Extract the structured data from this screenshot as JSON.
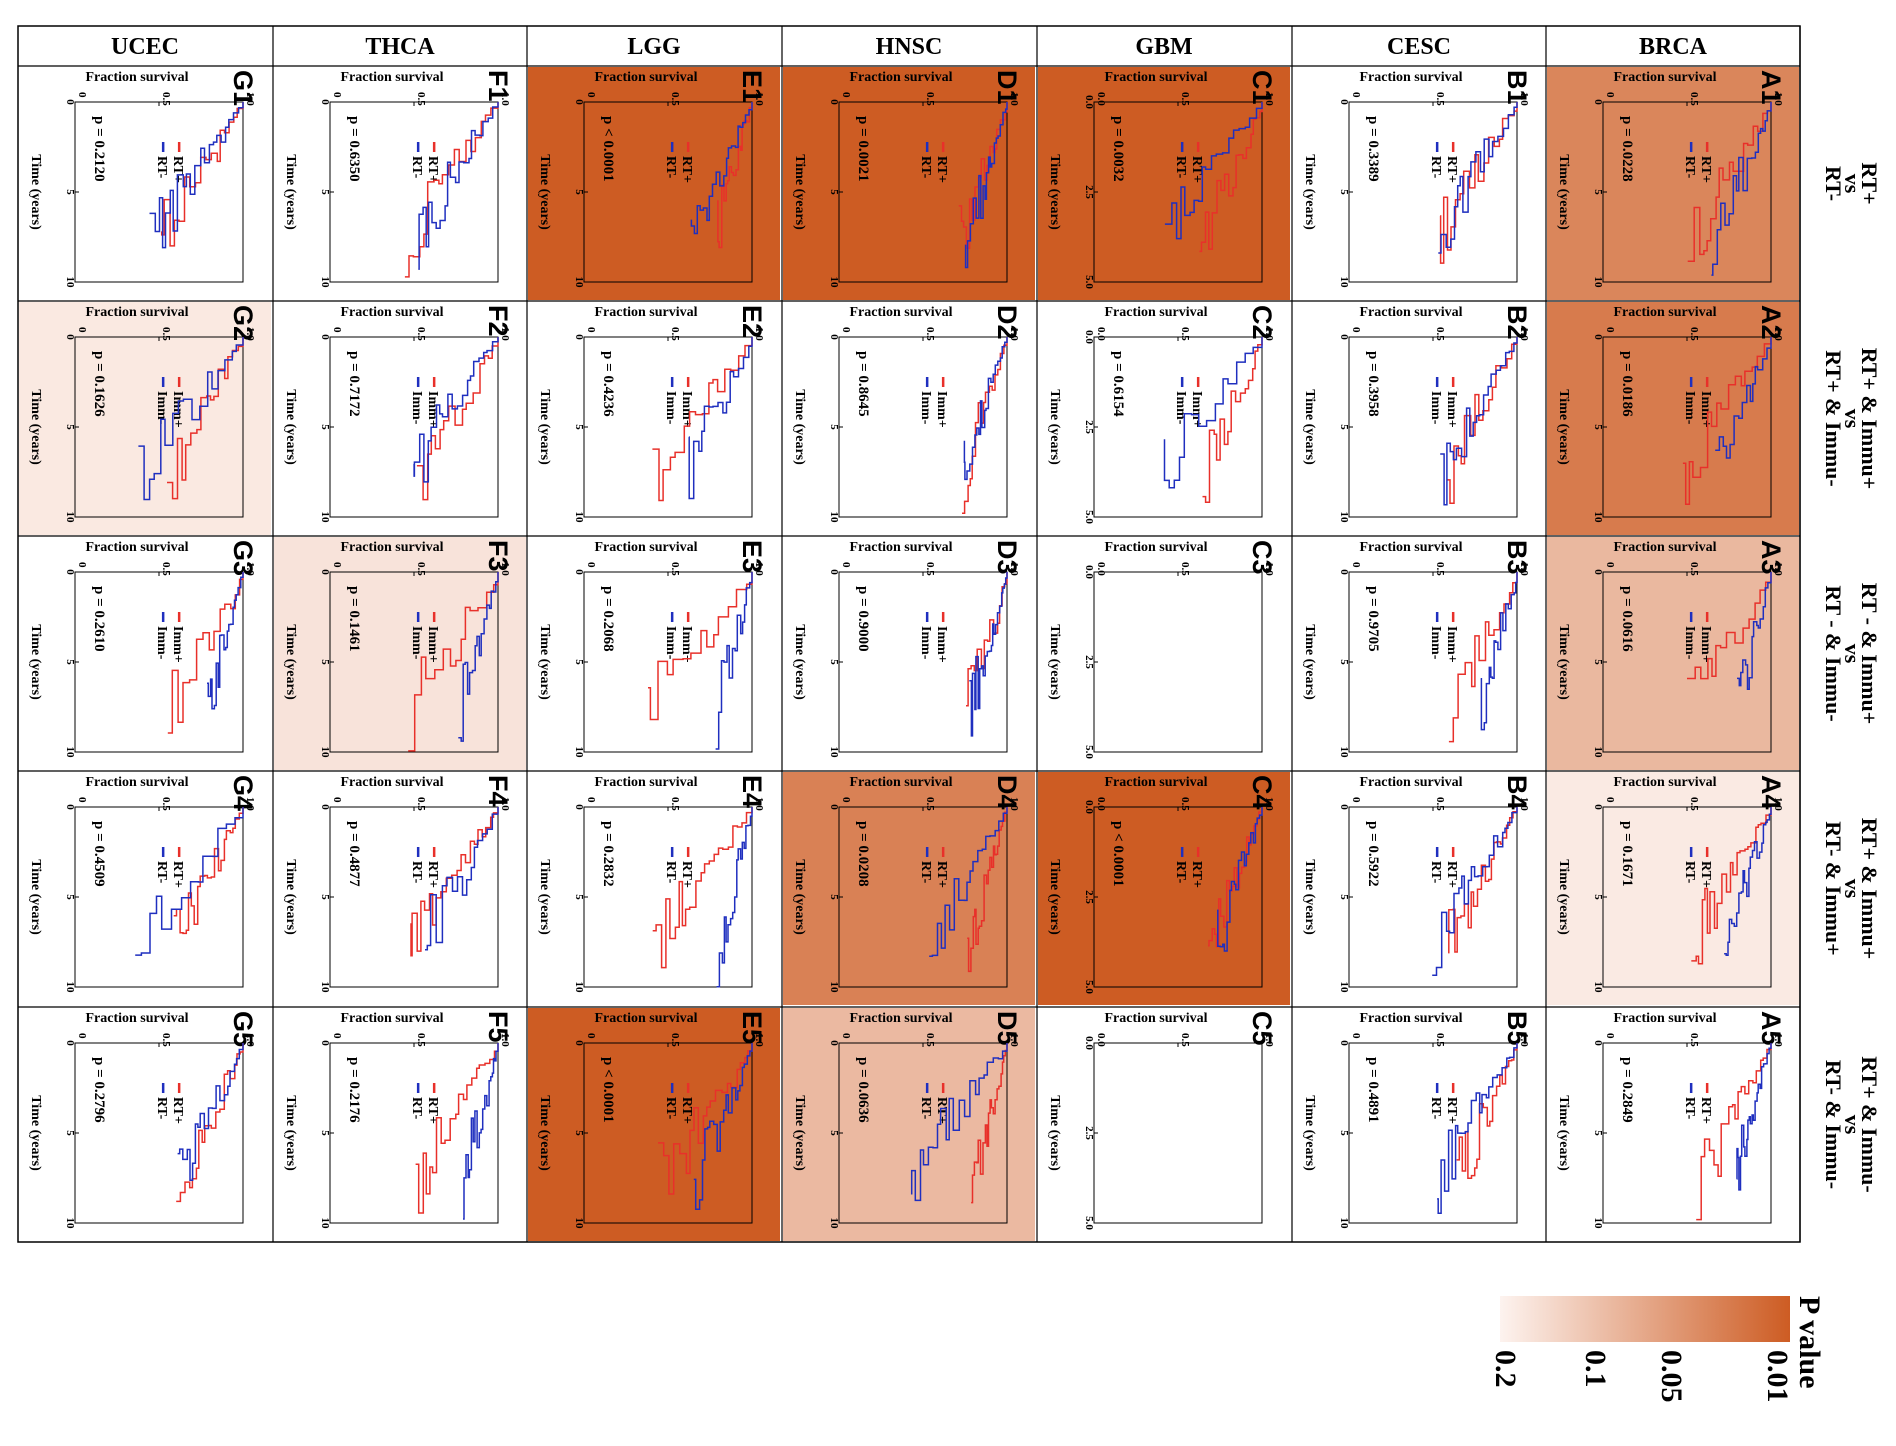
{
  "figure": {
    "columns": [
      "BRCA",
      "CESC",
      "GBM",
      "HNSC",
      "LGG",
      "THCA",
      "UCEC"
    ],
    "row_labels": [
      {
        "a": "RT+",
        "vs": "vs",
        "b": "RT-"
      },
      {
        "a": "RT+ & Immu+",
        "vs": "vs",
        "b": "RT+ & Immu-"
      },
      {
        "a": "RT - & Immu+",
        "vs": "vs",
        "b": "RT - & Immu-"
      },
      {
        "a": "RT+ & Immu+",
        "vs": "vs",
        "b": "RT- & Immu+"
      },
      {
        "a": "RT+ & Immu-",
        "vs": "vs",
        "b": "RT- & Immu-"
      }
    ],
    "axis_labels": {
      "y": "Fraction survival",
      "x": "Time (years)"
    },
    "colorbar": {
      "title": "P value",
      "ticks": [
        "0.01",
        "0.05",
        "0.1",
        "0.2"
      ],
      "colors": {
        "low_p": "#cd5c23",
        "high_p": "#fdf3ef"
      }
    },
    "series_colors": {
      "group1": "#e8302a",
      "group2": "#1f2fbf"
    }
  },
  "chart_data": [
    {
      "type": "line",
      "id": "A1",
      "col": "BRCA",
      "row": 1,
      "p_label": "p = 0.0228",
      "p": 0.0228,
      "legend": [
        "RT+",
        "RT-"
      ],
      "xlim": [
        0,
        10
      ],
      "xticks": [
        "0",
        "5",
        "10"
      ],
      "yticks": [
        "0",
        "0.5",
        "1.0"
      ],
      "empty": false
    },
    {
      "type": "line",
      "id": "A2",
      "col": "BRCA",
      "row": 2,
      "p_label": "p = 0.0186",
      "p": 0.0186,
      "legend": [
        "Imm+",
        "Imm-"
      ],
      "xlim": [
        0,
        10
      ],
      "xticks": [
        "0",
        "5",
        "10"
      ],
      "yticks": [
        "0",
        "0.5",
        "1.0"
      ],
      "empty": false
    },
    {
      "type": "line",
      "id": "A3",
      "col": "BRCA",
      "row": 3,
      "p_label": "p = 0.0616",
      "p": 0.0616,
      "legend": [
        "Imm+",
        "Imm-"
      ],
      "xlim": [
        0,
        10
      ],
      "xticks": [
        "0",
        "5",
        "10"
      ],
      "yticks": [
        "0",
        "0.5",
        "1.0"
      ],
      "empty": false
    },
    {
      "type": "line",
      "id": "A4",
      "col": "BRCA",
      "row": 4,
      "p_label": "p = 0.1671",
      "p": 0.1671,
      "legend": [
        "RT+",
        "RT-"
      ],
      "xlim": [
        0,
        10
      ],
      "xticks": [
        "0",
        "5",
        "10"
      ],
      "yticks": [
        "0",
        "0.5",
        "1.0"
      ],
      "empty": false
    },
    {
      "type": "line",
      "id": "A5",
      "col": "BRCA",
      "row": 5,
      "p_label": "p = 0.2849",
      "p": 0.2849,
      "legend": [
        "RT+",
        "RT-"
      ],
      "xlim": [
        0,
        10
      ],
      "xticks": [
        "0",
        "5",
        "10"
      ],
      "yticks": [
        "0",
        "0.5",
        "1.0"
      ],
      "empty": false
    },
    {
      "type": "line",
      "id": "B1",
      "col": "CESC",
      "row": 1,
      "p_label": "p = 0.3389",
      "p": 0.3389,
      "legend": [
        "RT+",
        "RT-"
      ],
      "xlim": [
        0,
        10
      ],
      "xticks": [
        "0",
        "5",
        "10"
      ],
      "yticks": [
        "0",
        "0.5",
        "1.0"
      ],
      "empty": false
    },
    {
      "type": "line",
      "id": "B2",
      "col": "CESC",
      "row": 2,
      "p_label": "p = 0.3958",
      "p": 0.3958,
      "legend": [
        "Imm+",
        "Imm-"
      ],
      "xlim": [
        0,
        10
      ],
      "xticks": [
        "0",
        "5",
        "10"
      ],
      "yticks": [
        "0",
        "0.5",
        "1.0"
      ],
      "empty": false
    },
    {
      "type": "line",
      "id": "B3",
      "col": "CESC",
      "row": 3,
      "p_label": "p = 0.9705",
      "p": 0.9705,
      "legend": [
        "Imm+",
        "Imm-"
      ],
      "xlim": [
        0,
        10
      ],
      "xticks": [
        "0",
        "5",
        "10"
      ],
      "yticks": [
        "0",
        "0.5",
        "1.0"
      ],
      "empty": false
    },
    {
      "type": "line",
      "id": "B4",
      "col": "CESC",
      "row": 4,
      "p_label": "p = 0.5922",
      "p": 0.5922,
      "legend": [
        "RT+",
        "RT-"
      ],
      "xlim": [
        0,
        10
      ],
      "xticks": [
        "0",
        "5",
        "10"
      ],
      "yticks": [
        "0",
        "0.5",
        "1.0"
      ],
      "empty": false
    },
    {
      "type": "line",
      "id": "B5",
      "col": "CESC",
      "row": 5,
      "p_label": "p = 0.4891",
      "p": 0.4891,
      "legend": [
        "RT+",
        "RT-"
      ],
      "xlim": [
        0,
        10
      ],
      "xticks": [
        "0",
        "5",
        "10"
      ],
      "yticks": [
        "0",
        "0.5",
        "1.0"
      ],
      "empty": false
    },
    {
      "type": "line",
      "id": "C1",
      "col": "GBM",
      "row": 1,
      "p_label": "p = 0.0032",
      "p": 0.0032,
      "legend": [
        "RT+",
        "RT-"
      ],
      "xlim": [
        0,
        5
      ],
      "xticks": [
        "0.0",
        "2.5",
        "5.0"
      ],
      "yticks": [
        "0.0",
        "0.5",
        "1.0"
      ],
      "empty": false
    },
    {
      "type": "line",
      "id": "C2",
      "col": "GBM",
      "row": 2,
      "p_label": "p = 0.6154",
      "p": 0.6154,
      "legend": [
        "Imm+",
        "Imm-"
      ],
      "xlim": [
        0,
        5
      ],
      "xticks": [
        "0.0",
        "2.5",
        "5.0"
      ],
      "yticks": [
        "0.0",
        "0.5",
        "1.0"
      ],
      "empty": false
    },
    {
      "type": "line",
      "id": "C3",
      "col": "GBM",
      "row": 3,
      "p_label": "",
      "p": null,
      "legend": [],
      "xlim": [
        0,
        5
      ],
      "xticks": [
        "0.0",
        "2.5",
        "5.0"
      ],
      "yticks": [
        "0.0",
        "0.5",
        "1.0"
      ],
      "empty": true
    },
    {
      "type": "line",
      "id": "C4",
      "col": "GBM",
      "row": 4,
      "p_label": "p < 0.0001",
      "p": 0.0001,
      "legend": [
        "RT+",
        "RT-"
      ],
      "xlim": [
        0,
        5
      ],
      "xticks": [
        "0.0",
        "2.5",
        "5.0"
      ],
      "yticks": [
        "0.0",
        "0.5",
        "1.0"
      ],
      "empty": false
    },
    {
      "type": "line",
      "id": "C5",
      "col": "GBM",
      "row": 5,
      "p_label": "",
      "p": null,
      "legend": [],
      "xlim": [
        0,
        5
      ],
      "xticks": [
        "0.0",
        "2.5",
        "5.0"
      ],
      "yticks": [
        "0.0",
        "0.5",
        "1.0"
      ],
      "empty": true
    },
    {
      "type": "line",
      "id": "D1",
      "col": "HNSC",
      "row": 1,
      "p_label": "p = 0.0021",
      "p": 0.0021,
      "legend": [
        "RT+",
        "RT-"
      ],
      "xlim": [
        0,
        10
      ],
      "xticks": [
        "0",
        "5",
        "10"
      ],
      "yticks": [
        "0",
        "0.5",
        "1.0"
      ],
      "empty": false
    },
    {
      "type": "line",
      "id": "D2",
      "col": "HNSC",
      "row": 2,
      "p_label": "p = 0.8645",
      "p": 0.8645,
      "legend": [
        "Imm+",
        "Imm-"
      ],
      "xlim": [
        0,
        10
      ],
      "xticks": [
        "0",
        "5",
        "10"
      ],
      "yticks": [
        "0",
        "0.5",
        "1.0"
      ],
      "empty": false
    },
    {
      "type": "line",
      "id": "D3",
      "col": "HNSC",
      "row": 3,
      "p_label": "p = 0.9000",
      "p": 0.9,
      "legend": [
        "Imm+",
        "Imm-"
      ],
      "xlim": [
        0,
        10
      ],
      "xticks": [
        "0",
        "5",
        "10"
      ],
      "yticks": [
        "0",
        "0.5",
        "1.0"
      ],
      "empty": false
    },
    {
      "type": "line",
      "id": "D4",
      "col": "HNSC",
      "row": 4,
      "p_label": "p = 0.0208",
      "p": 0.0208,
      "legend": [
        "RT+",
        "RT-"
      ],
      "xlim": [
        0,
        10
      ],
      "xticks": [
        "0",
        "5",
        "10"
      ],
      "yticks": [
        "0",
        "0.5",
        "1.0"
      ],
      "empty": false
    },
    {
      "type": "line",
      "id": "D5",
      "col": "HNSC",
      "row": 5,
      "p_label": "p = 0.0636",
      "p": 0.0636,
      "legend": [
        "RT+",
        "RT-"
      ],
      "xlim": [
        0,
        10
      ],
      "xticks": [
        "0",
        "5",
        "10"
      ],
      "yticks": [
        "0",
        "0.5",
        "1.0"
      ],
      "empty": false
    },
    {
      "type": "line",
      "id": "E1",
      "col": "LGG",
      "row": 1,
      "p_label": "p < 0.0001",
      "p": 0.0001,
      "legend": [
        "RT+",
        "RT-"
      ],
      "xlim": [
        0,
        10
      ],
      "xticks": [
        "0",
        "5",
        "10"
      ],
      "yticks": [
        "0",
        "0.5",
        "1.0"
      ],
      "empty": false
    },
    {
      "type": "line",
      "id": "E2",
      "col": "LGG",
      "row": 2,
      "p_label": "p = 0.4236",
      "p": 0.4236,
      "legend": [
        "Imm+",
        "Imm-"
      ],
      "xlim": [
        0,
        10
      ],
      "xticks": [
        "0",
        "5",
        "10"
      ],
      "yticks": [
        "0",
        "0.5",
        "1.0"
      ],
      "empty": false
    },
    {
      "type": "line",
      "id": "E3",
      "col": "LGG",
      "row": 3,
      "p_label": "p = 0.2068",
      "p": 0.2068,
      "legend": [
        "Imm+",
        "Imm-"
      ],
      "xlim": [
        0,
        10
      ],
      "xticks": [
        "0",
        "5",
        "10"
      ],
      "yticks": [
        "0",
        "0.5",
        "1.0"
      ],
      "empty": false
    },
    {
      "type": "line",
      "id": "E4",
      "col": "LGG",
      "row": 4,
      "p_label": "p = 0.2832",
      "p": 0.2832,
      "legend": [
        "RT+",
        "RT-"
      ],
      "xlim": [
        0,
        10
      ],
      "xticks": [
        "0",
        "5",
        "10"
      ],
      "yticks": [
        "0",
        "0.5",
        "1.0"
      ],
      "empty": false
    },
    {
      "type": "line",
      "id": "E5",
      "col": "LGG",
      "row": 5,
      "p_label": "p < 0.0001",
      "p": 0.0001,
      "legend": [
        "RT+",
        "RT-"
      ],
      "xlim": [
        0,
        10
      ],
      "xticks": [
        "0",
        "5",
        "10"
      ],
      "yticks": [
        "0",
        "0.5",
        "1.0"
      ],
      "empty": false
    },
    {
      "type": "line",
      "id": "F1",
      "col": "THCA",
      "row": 1,
      "p_label": "p = 0.6350",
      "p": 0.635,
      "legend": [
        "RT+",
        "RT-"
      ],
      "xlim": [
        0,
        10
      ],
      "xticks": [
        "0",
        "5",
        "10"
      ],
      "yticks": [
        "0",
        "0.5",
        "1.0"
      ],
      "empty": false
    },
    {
      "type": "line",
      "id": "F2",
      "col": "THCA",
      "row": 2,
      "p_label": "p = 0.7172",
      "p": 0.7172,
      "legend": [
        "Imm+",
        "Imm-"
      ],
      "xlim": [
        0,
        10
      ],
      "xticks": [
        "0",
        "5",
        "10"
      ],
      "yticks": [
        "0",
        "0.5",
        "1.0"
      ],
      "empty": false
    },
    {
      "type": "line",
      "id": "F3",
      "col": "THCA",
      "row": 3,
      "p_label": "p = 0.1461",
      "p": 0.1461,
      "legend": [
        "Imm+",
        "Imm-"
      ],
      "xlim": [
        0,
        10
      ],
      "xticks": [
        "0",
        "5",
        "10"
      ],
      "yticks": [
        "0",
        "0.5",
        "1.0"
      ],
      "empty": false
    },
    {
      "type": "line",
      "id": "F4",
      "col": "THCA",
      "row": 4,
      "p_label": "p = 0.4877",
      "p": 0.4877,
      "legend": [
        "RT+",
        "RT-"
      ],
      "xlim": [
        0,
        10
      ],
      "xticks": [
        "0",
        "5",
        "10"
      ],
      "yticks": [
        "0",
        "0.5",
        "1.0"
      ],
      "empty": false
    },
    {
      "type": "line",
      "id": "F5",
      "col": "THCA",
      "row": 5,
      "p_label": "p = 0.2176",
      "p": 0.2176,
      "legend": [
        "RT+",
        "RT-"
      ],
      "xlim": [
        0,
        10
      ],
      "xticks": [
        "0",
        "5",
        "10"
      ],
      "yticks": [
        "0",
        "0.5",
        "1.0"
      ],
      "empty": false
    },
    {
      "type": "line",
      "id": "G1",
      "col": "UCEC",
      "row": 1,
      "p_label": "p = 0.2120",
      "p": 0.212,
      "legend": [
        "RT+",
        "RT-"
      ],
      "xlim": [
        0,
        10
      ],
      "xticks": [
        "0",
        "5",
        "10"
      ],
      "yticks": [
        "0",
        "0.5",
        "1.0"
      ],
      "empty": false
    },
    {
      "type": "line",
      "id": "G2",
      "col": "UCEC",
      "row": 2,
      "p_label": "p = 0.1626",
      "p": 0.1626,
      "legend": [
        "Imm+",
        "Imm-"
      ],
      "xlim": [
        0,
        10
      ],
      "xticks": [
        "0",
        "5",
        "10"
      ],
      "yticks": [
        "0",
        "0.5",
        "1.0"
      ],
      "empty": false
    },
    {
      "type": "line",
      "id": "G3",
      "col": "UCEC",
      "row": 3,
      "p_label": "p = 0.2610",
      "p": 0.261,
      "legend": [
        "Imm+",
        "Imm-"
      ],
      "xlim": [
        0,
        10
      ],
      "xticks": [
        "0",
        "5",
        "10"
      ],
      "yticks": [
        "0",
        "0.5",
        "1.0"
      ],
      "empty": false
    },
    {
      "type": "line",
      "id": "G4",
      "col": "UCEC",
      "row": 4,
      "p_label": "p = 0.4509",
      "p": 0.4509,
      "legend": [
        "RT+",
        "RT-"
      ],
      "xlim": [
        0,
        10
      ],
      "xticks": [
        "0",
        "5",
        "10"
      ],
      "yticks": [
        "0",
        "0.5",
        "1.0"
      ],
      "empty": false
    },
    {
      "type": "line",
      "id": "G5",
      "col": "UCEC",
      "row": 5,
      "p_label": "p = 0.2796",
      "p": 0.2796,
      "legend": [
        "RT+",
        "RT-"
      ],
      "xlim": [
        0,
        10
      ],
      "xticks": [
        "0",
        "5",
        "10"
      ],
      "yticks": [
        "0",
        "0.5",
        "1.0"
      ],
      "empty": false
    }
  ]
}
